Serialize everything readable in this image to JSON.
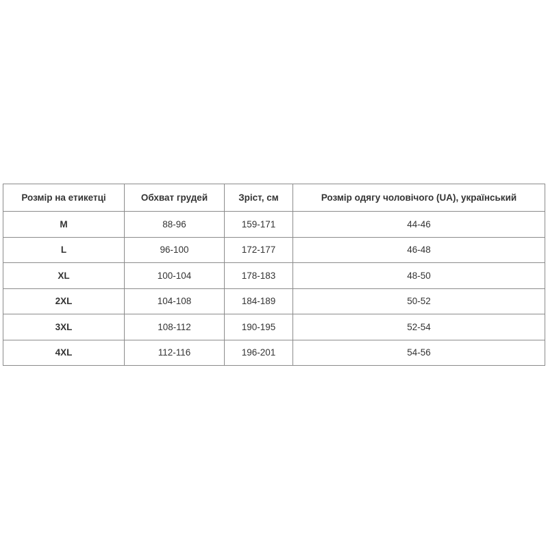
{
  "table": {
    "headers": [
      "Розмір на етикетці",
      "Обхват грудей",
      "Зріст, см",
      "Розмір одягу чоловічого (UA), український"
    ],
    "rows": [
      [
        "M",
        "88-96",
        "159-171",
        "44-46"
      ],
      [
        "L",
        "96-100",
        "172-177",
        "46-48"
      ],
      [
        "XL",
        "100-104",
        "178-183",
        "48-50"
      ],
      [
        "2XL",
        "104-108",
        "184-189",
        "50-52"
      ],
      [
        "3XL",
        "108-112",
        "190-195",
        "52-54"
      ],
      [
        "4XL",
        "112-116",
        "196-201",
        "54-56"
      ]
    ]
  }
}
